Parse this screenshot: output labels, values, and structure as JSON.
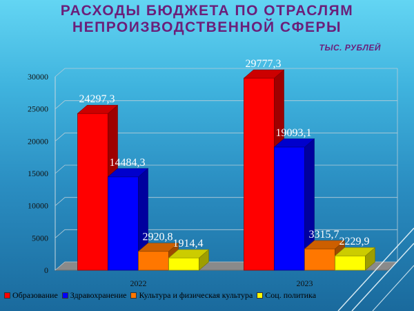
{
  "header": {
    "title_line1": "РАСХОДЫ  БЮДЖЕТА  ПО  ОТРАСЛЯМ",
    "title_line2": "НЕПРОИЗВОДСТВЕННОЙ  СФЕРЫ",
    "units": "ТЫС. РУБЛЕЙ"
  },
  "chart_data": {
    "type": "bar",
    "categories": [
      "2022",
      "2023"
    ],
    "series": [
      {
        "name": "Образование",
        "color": "#ff0000",
        "values": [
          24297.3,
          29777.3
        ],
        "labels": [
          "24297,3",
          "29777,3"
        ]
      },
      {
        "name": "Здравохранение",
        "color": "#0000ff",
        "values": [
          14484.3,
          19093.1
        ],
        "labels": [
          "14484,3",
          "19093,1"
        ]
      },
      {
        "name": "Культура и физическая культура",
        "color": "#ff7700",
        "values": [
          2920.8,
          3315.7
        ],
        "labels": [
          "2920,8",
          "3315,7"
        ]
      },
      {
        "name": "Соц. политика",
        "color": "#ffff00",
        "values": [
          1914.4,
          2229.9
        ],
        "labels": [
          "1914,4",
          "2229,9"
        ]
      }
    ],
    "yticks": [
      "0",
      "5000",
      "10000",
      "15000",
      "20000",
      "25000",
      "30000"
    ],
    "ylim": [
      0,
      30000
    ],
    "grid": true,
    "legend_position": "bottom"
  }
}
